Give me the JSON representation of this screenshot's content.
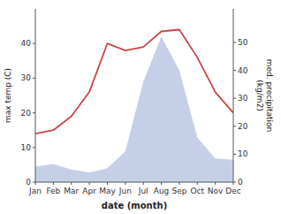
{
  "chart_data": {
    "type": "line",
    "xlabel": "date (month)",
    "ylabel": "max temp (C)",
    "y2label": "med. precipitation\n(kg/m2)",
    "categories": [
      "Jan",
      "Feb",
      "Mar",
      "Apr",
      "May",
      "Jun",
      "Jul",
      "Aug",
      "Sep",
      "Oct",
      "Nov",
      "Dec"
    ],
    "series": [
      {
        "type": "area",
        "axis": "y2",
        "color": "#c5cfe8",
        "values": [
          5.5,
          6.5,
          4.5,
          3.5,
          5.0,
          11.0,
          36.0,
          52.0,
          40.0,
          16.0,
          8.5,
          8.0
        ]
      },
      {
        "type": "line",
        "color": "#cc4444",
        "values": [
          14.0,
          15.0,
          19.0,
          26.0,
          40.0,
          38.0,
          39.0,
          43.5,
          44.0,
          36.0,
          26.0,
          20.0
        ]
      }
    ],
    "ylim": [
      0,
      50
    ],
    "yticks": [
      0,
      10,
      20,
      30,
      40
    ],
    "y2lim": [
      0,
      62
    ],
    "y2ticks": [
      0,
      10,
      20,
      30,
      40,
      50
    ],
    "grid": false
  }
}
